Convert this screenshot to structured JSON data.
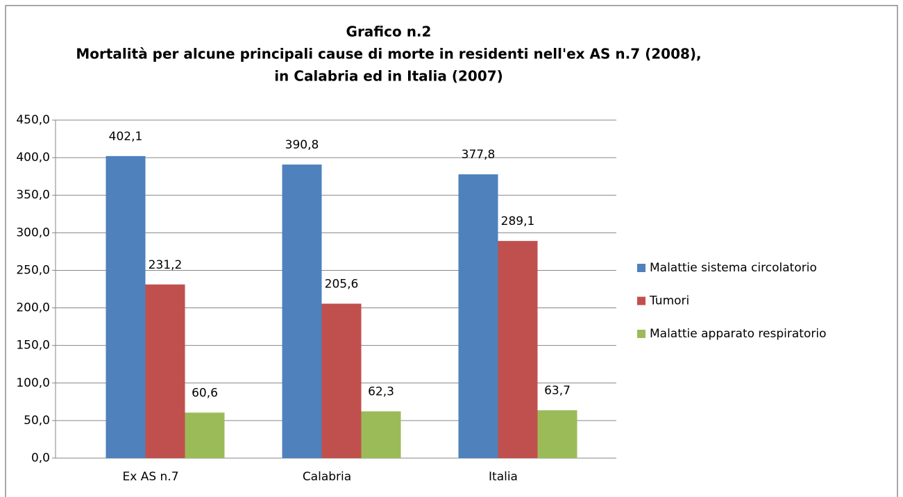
{
  "chart_data": {
    "type": "bar",
    "title": [
      "Grafico n.2",
      "Mortalità per alcune principali cause di morte in residenti nell'ex AS n.7 (2008),",
      "in Calabria ed in Italia (2007)"
    ],
    "categories": [
      "Ex AS n.7",
      "Calabria",
      "Italia"
    ],
    "series": [
      {
        "name": "Malattie sistema circolatorio",
        "color": "#4f81bd",
        "values": [
          402.1,
          390.8,
          377.8
        ],
        "value_labels": [
          "402,1",
          "390,8",
          "377,8"
        ]
      },
      {
        "name": "Tumori",
        "color": "#c0504d",
        "values": [
          231.2,
          205.6,
          289.1
        ],
        "value_labels": [
          "231,2",
          "205,6",
          "289,1"
        ]
      },
      {
        "name": "Malattie apparato respiratorio",
        "color": "#9bbb59",
        "values": [
          60.6,
          62.3,
          63.7
        ],
        "value_labels": [
          "60,6",
          "62,3",
          "63,7"
        ]
      }
    ],
    "ylim": [
      0,
      450
    ],
    "yticks": [
      {
        "value": 0,
        "label": "0,0"
      },
      {
        "value": 50,
        "label": "50,0"
      },
      {
        "value": 100,
        "label": "100,0"
      },
      {
        "value": 150,
        "label": "150,0"
      },
      {
        "value": 200,
        "label": "200,0"
      },
      {
        "value": 250,
        "label": "250,0"
      },
      {
        "value": 300,
        "label": "300,0"
      },
      {
        "value": 350,
        "label": "350,0"
      },
      {
        "value": 400,
        "label": "400,0"
      },
      {
        "value": 450,
        "label": "450,0"
      }
    ],
    "grid": true,
    "legend": "right"
  }
}
